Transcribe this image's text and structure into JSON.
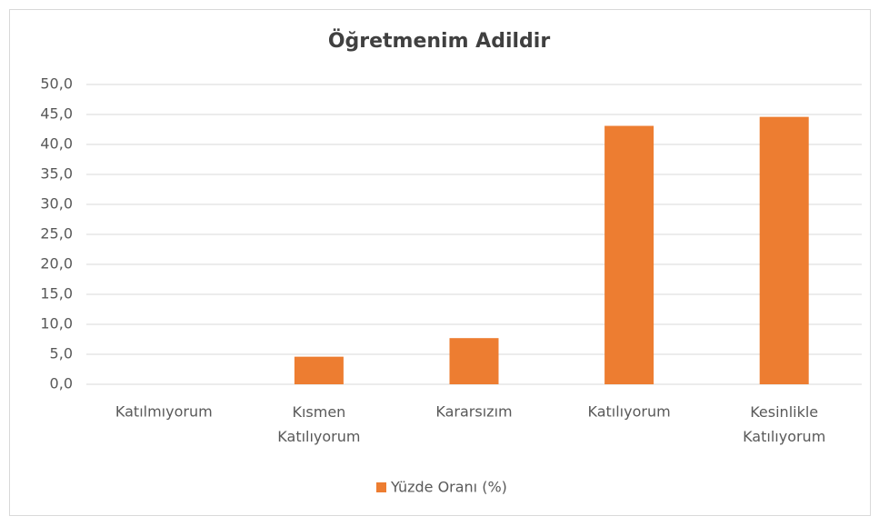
{
  "chart_data": {
    "type": "bar",
    "title": "Öğretmenim Adildir",
    "categories": [
      "Katılmıyorum",
      "Kısmen Katılıyorum",
      "Kararsızım",
      "Katılıyorum",
      "Kesinlikle Katılıyorum"
    ],
    "series": [
      {
        "name": "Yüzde Oranı (%)",
        "color": "#ed7d31",
        "values": [
          0,
          4.6,
          7.7,
          43.1,
          44.6
        ]
      }
    ],
    "ylim": [
      0,
      50
    ],
    "yticks": [
      {
        "value": 0,
        "label": "0,0"
      },
      {
        "value": 5,
        "label": "5,0"
      },
      {
        "value": 10,
        "label": "10,0"
      },
      {
        "value": 15,
        "label": "15,0"
      },
      {
        "value": 20,
        "label": "20,0"
      },
      {
        "value": 25,
        "label": "25,0"
      },
      {
        "value": 30,
        "label": "30,0"
      },
      {
        "value": 35,
        "label": "35,0"
      },
      {
        "value": 40,
        "label": "40,0"
      },
      {
        "value": 45,
        "label": "45,0"
      },
      {
        "value": 50,
        "label": "50,0"
      }
    ],
    "grid": true,
    "legend": "bottom"
  }
}
